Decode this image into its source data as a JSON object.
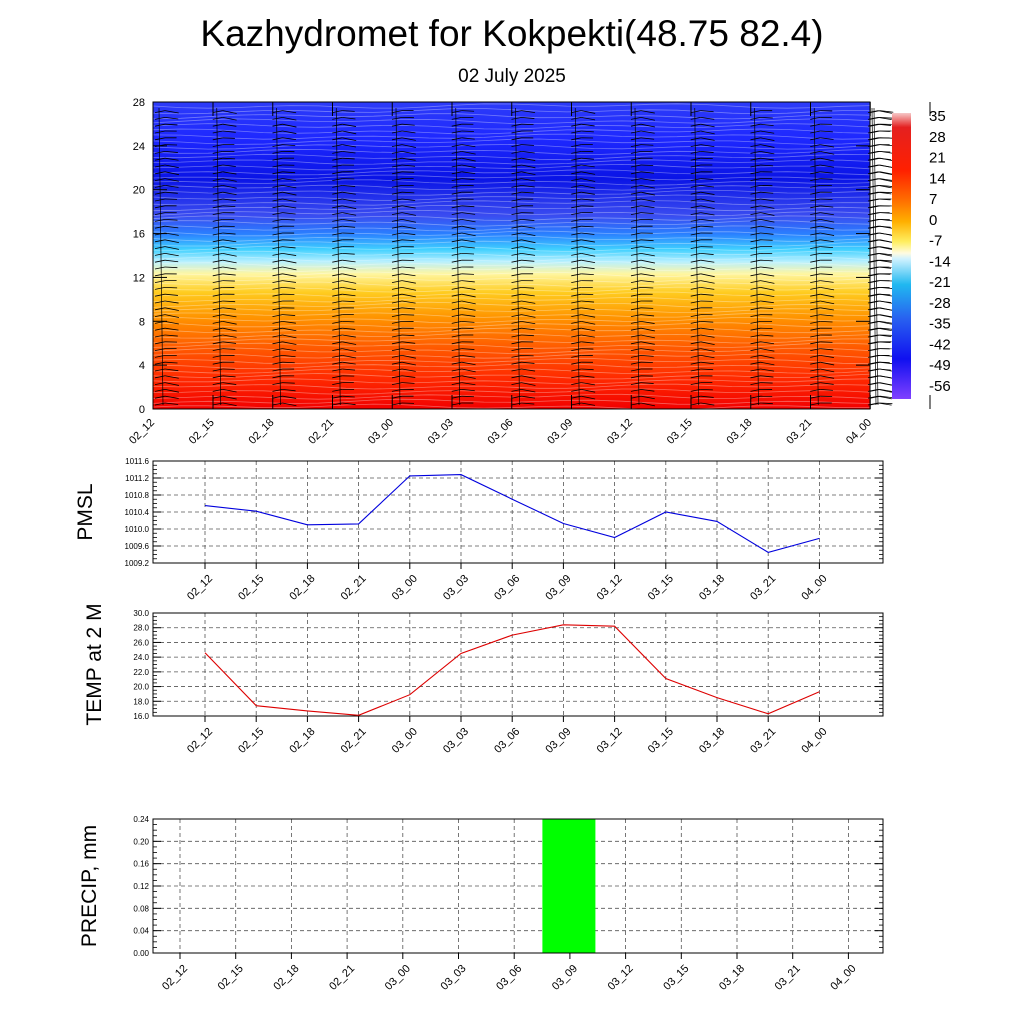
{
  "title": "Kazhydromet for Kokpekti(48.75 82.4)",
  "subtitle": "02 July 2025",
  "colors": {
    "pmsl_line": "#0000dd",
    "temp_line": "#dd0000",
    "precip_bar": "#00ff00",
    "grid": "#555555"
  },
  "chart_data": [
    {
      "type": "heatmap",
      "name": "",
      "x": [
        "02_12",
        "02_15",
        "02_18",
        "02_21",
        "03_00",
        "03_03",
        "03_06",
        "03_09",
        "03_12",
        "03_15",
        "03_18",
        "03_21",
        "04_00"
      ],
      "yticks": [
        0,
        4,
        8,
        12,
        16,
        20,
        24,
        28
      ],
      "ylim": [
        0,
        28
      ],
      "colorbar": {
        "labels": [
          "35",
          "28",
          "21",
          "14",
          "7",
          "0",
          "-7",
          "-14",
          "-21",
          "-28",
          "-35",
          "-42",
          "-49",
          "-56"
        ],
        "range": [
          -63,
          42
        ]
      },
      "temperature_profile": [
        [
          0,
          29
        ],
        [
          3,
          22
        ],
        [
          6,
          15
        ],
        [
          9,
          6
        ],
        [
          12,
          -2
        ],
        [
          13.5,
          -9
        ],
        [
          15.5,
          -22
        ],
        [
          18,
          -36
        ],
        [
          21,
          -50
        ],
        [
          24,
          -57
        ],
        [
          28,
          -54
        ]
      ],
      "wind_barbs": true
    },
    {
      "type": "line",
      "ylabel": "PMSL",
      "x": [
        "02_12",
        "02_15",
        "02_18",
        "02_21",
        "03_00",
        "03_03",
        "03_06",
        "03_09",
        "03_12",
        "03_15",
        "03_18",
        "03_21",
        "04_00"
      ],
      "yticks": [
        "1009.2",
        "1009.6",
        "1010.0",
        "1010.4",
        "1010.8",
        "1011.2",
        "1011.6"
      ],
      "ylim": [
        1009.2,
        1011.6
      ],
      "values": [
        1010.55,
        1010.42,
        1010.1,
        1010.12,
        1011.25,
        1011.28,
        1010.7,
        1010.13,
        1009.8,
        1010.4,
        1010.18,
        1009.45,
        1009.78
      ]
    },
    {
      "type": "line",
      "ylabel": "TEMP at 2 M",
      "x": [
        "02_12",
        "02_15",
        "02_18",
        "02_21",
        "03_00",
        "03_03",
        "03_06",
        "03_09",
        "03_12",
        "03_15",
        "03_18",
        "03_21",
        "04_00"
      ],
      "yticks": [
        "16.0",
        "18.0",
        "20.0",
        "22.0",
        "24.0",
        "26.0",
        "28.0",
        "30.0"
      ],
      "ylim": [
        16.0,
        30.0
      ],
      "values": [
        24.6,
        17.4,
        16.7,
        16.1,
        18.9,
        24.5,
        27.0,
        28.4,
        28.2,
        21.1,
        18.5,
        16.3,
        19.3
      ]
    },
    {
      "type": "bar",
      "ylabel": "PRECIP, mm",
      "categories": [
        "02_12",
        "02_15",
        "02_18",
        "02_21",
        "03_00",
        "03_03",
        "03_06",
        "03_09",
        "03_12",
        "03_15",
        "03_18",
        "03_21",
        "04_00"
      ],
      "yticks": [
        "0.00",
        "0.04",
        "0.08",
        "0.12",
        "0.16",
        "0.20",
        "0.24"
      ],
      "ylim": [
        0,
        0.24
      ],
      "values": [
        0,
        0,
        0,
        0,
        0,
        0,
        0,
        0.24,
        0,
        0,
        0,
        0,
        0
      ]
    }
  ]
}
